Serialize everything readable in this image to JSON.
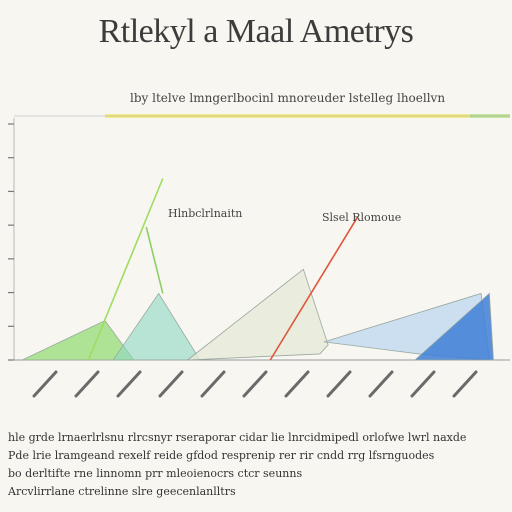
{
  "title": "Rtlekyl a Maal Ametrys",
  "legend_text": "lby ltelve lmngerlbocinl mnoreuder lstelleg lhoellvn",
  "captions": [
    "hle grde lrnaerlrlsnu rlrcsnyr rseraporar cidar lie lnrcidmipedl orlofwe lwrl naxde",
    "Pde lrie lramgeand rexelf reide gfdod resprenip rer rir cndd rrg lfsrnguodes",
    "bo derltifte rne linnomn prr mleoienocrs ctcr seunns",
    "Arcvlirrlane ctrelinne slre geecenlanlltrs"
  ],
  "chart_data": {
    "type": "area",
    "title": "Rtlekyl a Maal Ametrys",
    "xlabel": "",
    "ylabel": "",
    "x_tick_labels": [
      "",
      "",
      "",
      "",
      "",
      "",
      "",
      "",
      "",
      "",
      ""
    ],
    "x_tick_count": 11,
    "y_tick_count": 8,
    "ylim": [
      0,
      8
    ],
    "annotations": [
      {
        "text": "Hlnbclrlnaitn",
        "series": "green-peak"
      },
      {
        "text": "Slsel Rlomoue",
        "series": "red-line"
      }
    ],
    "series": [
      {
        "key": "s1",
        "color": "#8fdc6e",
        "opacity": 0.7,
        "points": [
          [
            0.2,
            0
          ],
          [
            2.2,
            1.3
          ],
          [
            2.9,
            0
          ]
        ]
      },
      {
        "key": "s2",
        "color": "#8ed9c5",
        "opacity": 0.6,
        "points": [
          [
            2.4,
            0
          ],
          [
            3.5,
            2.2
          ],
          [
            4.5,
            0
          ]
        ]
      },
      {
        "key": "s3",
        "color": "#e6ead8",
        "opacity": 0.8,
        "points": [
          [
            4.2,
            0
          ],
          [
            7.0,
            3.0
          ],
          [
            7.6,
            0.5
          ],
          [
            7.4,
            0.2
          ]
        ]
      },
      {
        "key": "s4",
        "color": "#bcd7ef",
        "opacity": 0.75,
        "points": [
          [
            7.5,
            0.6
          ],
          [
            11.3,
            2.2
          ],
          [
            11.5,
            0
          ],
          [
            9.8,
            0.2
          ]
        ]
      },
      {
        "key": "s5",
        "color": "#3f7fd6",
        "opacity": 0.85,
        "points": [
          [
            9.7,
            0
          ],
          [
            11.5,
            2.2
          ],
          [
            11.6,
            0
          ]
        ]
      }
    ],
    "lines": [
      {
        "key": "green-peak",
        "color": "#9fdc5f",
        "points": [
          [
            1.8,
            0
          ],
          [
            3.6,
            6.0
          ]
        ]
      },
      {
        "key": "green-drop",
        "color": "#8ccf63",
        "points": [
          [
            3.2,
            4.4
          ],
          [
            3.6,
            2.2
          ]
        ]
      },
      {
        "key": "red-line",
        "color": "#e0553a",
        "points": [
          [
            6.2,
            0
          ],
          [
            8.3,
            4.7
          ]
        ]
      }
    ],
    "top_bar": {
      "yellow": "#ece33a",
      "green": "#9bd45b"
    },
    "grid": false
  }
}
